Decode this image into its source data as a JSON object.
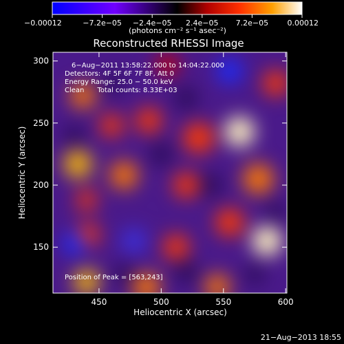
{
  "chart_data": {
    "type": "heatmap",
    "title": "Reconstructed RHESSI Image",
    "xlabel": "Heliocentric X (arcsec)",
    "ylabel": "Heliocentric Y (arcsec)",
    "xlim": [
      413,
      601
    ],
    "ylim": [
      113,
      307
    ],
    "xticks": [
      450,
      500,
      550,
      600
    ],
    "yticks": [
      150,
      200,
      250,
      300
    ],
    "colorbar": {
      "range": [
        -0.00012,
        0.00012
      ],
      "tick_values": [
        -0.00012,
        -7.2e-05,
        -2.4e-05,
        2.4e-05,
        7.2e-05,
        0.00012
      ],
      "tick_labels": [
        "−0.00012",
        "−7.2e−05",
        "−2.4e−05",
        "2.4e−05",
        "7.2e−05",
        "0.00012"
      ],
      "unit_label": "(photons cm⁻² s⁻¹ asec⁻²)"
    },
    "annotations": [
      "6−Aug−2011 13:58:22.000 to 14:04:22.000",
      "Detectors: 4F 5F 6F 7F 8F, Att 0",
      "Energy Range: 25.0 − 50.0 keV",
      "Clean      Total counts: 8.33E+03"
    ],
    "peak_label": "Position of Peak = [563,243]",
    "peak": [
      563,
      243
    ],
    "blobs": [
      {
        "x": 437,
        "y": 272,
        "v": 0.75,
        "r": 10
      },
      {
        "x": 433,
        "y": 217,
        "v": 0.8,
        "r": 11
      },
      {
        "x": 441,
        "y": 160,
        "v": 0.55,
        "r": 9
      },
      {
        "x": 440,
        "y": 122,
        "v": 0.9,
        "r": 10
      },
      {
        "x": 488,
        "y": 118,
        "v": 0.7,
        "r": 11
      },
      {
        "x": 545,
        "y": 118,
        "v": 0.7,
        "r": 10
      },
      {
        "x": 563,
        "y": 243,
        "v": 1.0,
        "r": 12
      },
      {
        "x": 585,
        "y": 155,
        "v": 0.95,
        "r": 12
      },
      {
        "x": 578,
        "y": 205,
        "v": 0.75,
        "r": 12
      },
      {
        "x": 530,
        "y": 238,
        "v": 0.6,
        "r": 12
      },
      {
        "x": 490,
        "y": 252,
        "v": 0.6,
        "r": 10
      },
      {
        "x": 470,
        "y": 208,
        "v": 0.7,
        "r": 11
      },
      {
        "x": 520,
        "y": 200,
        "v": 0.55,
        "r": 10
      },
      {
        "x": 555,
        "y": 170,
        "v": 0.6,
        "r": 11
      },
      {
        "x": 512,
        "y": 150,
        "v": 0.5,
        "r": 10
      },
      {
        "x": 460,
        "y": 248,
        "v": 0.55,
        "r": 9
      },
      {
        "x": 592,
        "y": 282,
        "v": 0.6,
        "r": 10
      },
      {
        "x": 505,
        "y": 297,
        "v": 0.45,
        "r": 9
      },
      {
        "x": 440,
        "y": 188,
        "v": 0.5,
        "r": 8
      },
      {
        "x": 430,
        "y": 153,
        "v": -0.85,
        "r": 9
      },
      {
        "x": 555,
        "y": 292,
        "v": -0.9,
        "r": 10
      },
      {
        "x": 478,
        "y": 155,
        "v": -0.55,
        "r": 10
      },
      {
        "x": 592,
        "y": 178,
        "v": -0.4,
        "r": 8
      },
      {
        "x": 540,
        "y": 200,
        "v": -0.45,
        "r": 9
      },
      {
        "x": 500,
        "y": 225,
        "v": -0.35,
        "r": 9
      },
      {
        "x": 520,
        "y": 270,
        "v": -0.45,
        "r": 9
      },
      {
        "x": 430,
        "y": 240,
        "v": -0.35,
        "r": 8
      },
      {
        "x": 462,
        "y": 282,
        "v": -0.4,
        "r": 8
      },
      {
        "x": 520,
        "y": 130,
        "v": -0.4,
        "r": 9
      },
      {
        "x": 575,
        "y": 128,
        "v": -0.3,
        "r": 8
      },
      {
        "x": 470,
        "y": 128,
        "v": -0.3,
        "r": 8
      }
    ]
  },
  "footer": {
    "timestamp": "21−Aug−2013 18:55"
  }
}
